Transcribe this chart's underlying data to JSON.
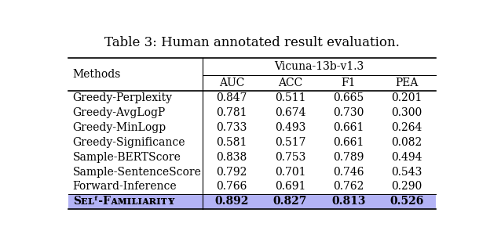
{
  "title": "Table 3: Human annotated result evaluation.",
  "model_header": "Vicuna-13b-v1.3",
  "col_headers": [
    "AUC",
    "ACC",
    "F1",
    "PEA"
  ],
  "rows": [
    {
      "method": "Greedy-Perplexity",
      "values": [
        0.847,
        0.511,
        0.665,
        0.201
      ],
      "highlight": false,
      "bold": false
    },
    {
      "method": "Greedy-AvgLogP",
      "values": [
        0.781,
        0.674,
        0.73,
        0.3
      ],
      "highlight": false,
      "bold": false
    },
    {
      "method": "Greedy-MinLogp",
      "values": [
        0.733,
        0.493,
        0.661,
        0.264
      ],
      "highlight": false,
      "bold": false
    },
    {
      "method": "Greedy-Significance",
      "values": [
        0.581,
        0.517,
        0.661,
        0.082
      ],
      "highlight": false,
      "bold": false
    },
    {
      "method": "Sample-BERTScore",
      "values": [
        0.838,
        0.753,
        0.789,
        0.494
      ],
      "highlight": false,
      "bold": false
    },
    {
      "method": "Sample-SentenceScore",
      "values": [
        0.792,
        0.701,
        0.746,
        0.543
      ],
      "highlight": false,
      "bold": false
    },
    {
      "method": "Forward-Inference",
      "values": [
        0.766,
        0.691,
        0.762,
        0.29
      ],
      "highlight": false,
      "bold": false
    },
    {
      "method": "Sᴇʟᶠ-Fᴀᴍɪʟɪᴀʀɪᴛʏ",
      "values": [
        0.892,
        0.827,
        0.813,
        0.526
      ],
      "highlight": true,
      "bold": true
    }
  ],
  "highlight_color": "#b3b3f5",
  "background_color": "#ffffff",
  "title_fontsize": 12,
  "header_fontsize": 10,
  "cell_fontsize": 10,
  "fig_width": 6.24,
  "fig_height": 3.04
}
